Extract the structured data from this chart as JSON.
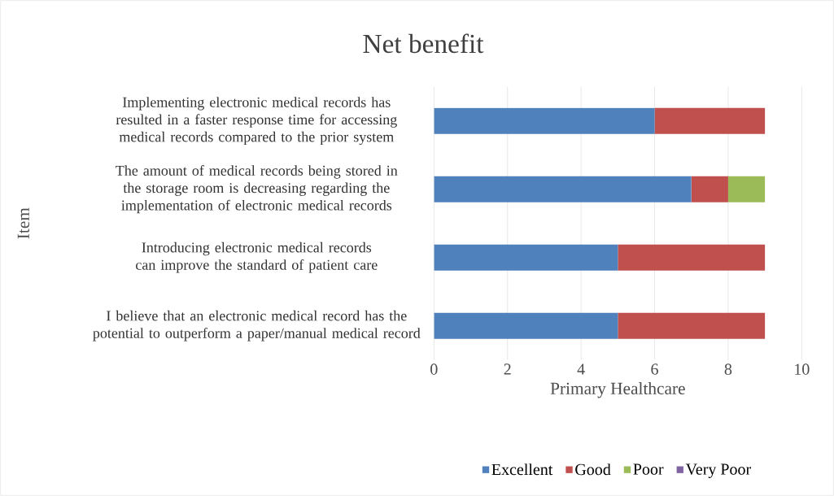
{
  "chart_data": {
    "type": "bar",
    "orientation": "horizontal",
    "stacked": true,
    "title": "Net benefit",
    "xlabel": "Primary Healthcare",
    "ylabel": "Item",
    "categories": [
      "Implementing electronic medical records has resulted in a faster response time for accessing medical records compared to the prior system",
      "The amount of medical records being stored in the storage room is decreasing regarding the implementation of electronic medical records",
      "Introducing electronic medical records can improve the standard of patient care",
      "I believe that an electronic medical record has the potential to outperform a paper/manual medical record"
    ],
    "series": [
      {
        "name": "Excellent",
        "color": "#4f81bd",
        "values": [
          6,
          7,
          5,
          5
        ]
      },
      {
        "name": "Good",
        "color": "#c0504d",
        "values": [
          3,
          1,
          4,
          4
        ]
      },
      {
        "name": "Poor",
        "color": "#9bbb59",
        "values": [
          0,
          1,
          0,
          0
        ]
      },
      {
        "name": "Very Poor",
        "color": "#8064a2",
        "values": [
          0,
          0,
          0,
          0
        ]
      }
    ],
    "xlim": [
      0,
      10
    ],
    "xticks": [
      0,
      2,
      4,
      6,
      8,
      10
    ],
    "grid": "x",
    "legend": "bottom"
  }
}
